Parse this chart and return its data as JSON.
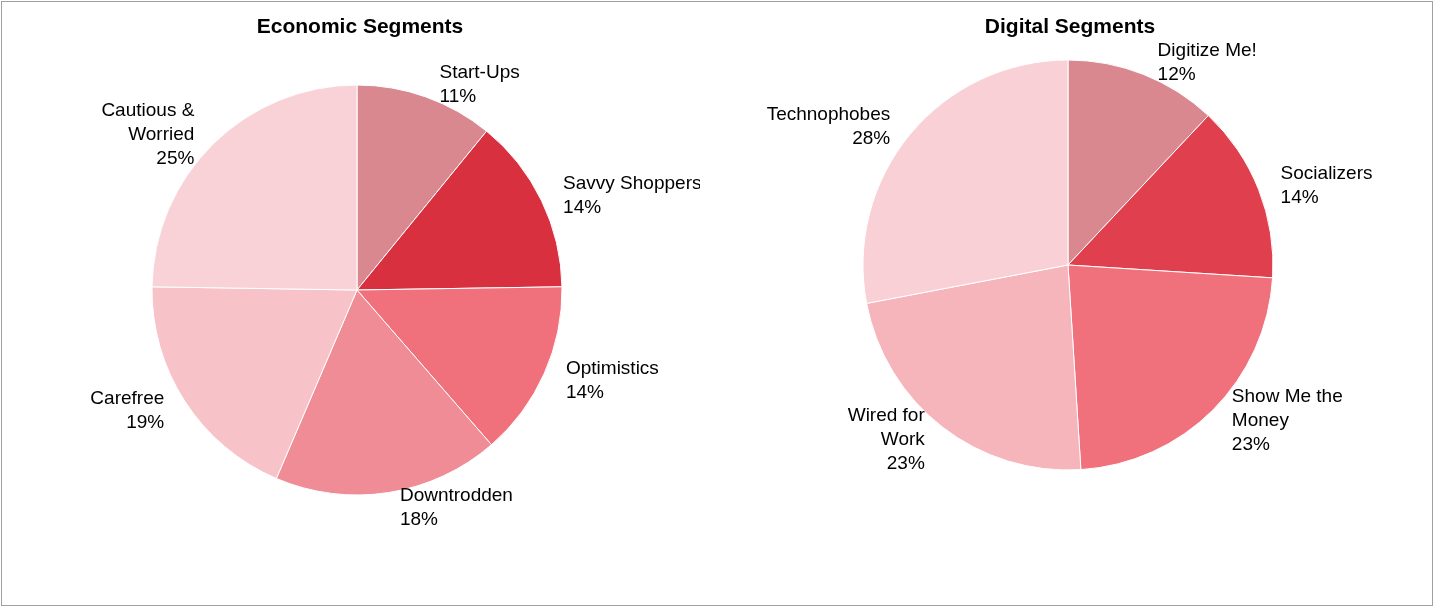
{
  "chart_data": [
    {
      "type": "pie",
      "title": "Economic Segments",
      "categories": [
        "Start-Ups",
        "Savvy Shoppers",
        "Optimistics",
        "Downtrodden",
        "Carefree",
        "Cautious &\nWorried"
      ],
      "values": [
        11,
        14,
        14,
        18,
        19,
        25
      ],
      "value_labels": [
        "11%",
        "14%",
        "14%",
        "18%",
        "19%",
        "25%"
      ],
      "colors": [
        "#d98890",
        "#d8303e",
        "#f0707c",
        "#ef8c96",
        "#f7c2c8",
        "#f8d2d6"
      ],
      "legend": false
    },
    {
      "type": "pie",
      "title": "Digital Segments",
      "categories": [
        "Digitize Me!",
        "Socializers",
        "Show Me the\nMoney",
        "Wired for\nWork",
        "Technophobes"
      ],
      "values": [
        12,
        14,
        23,
        23,
        28
      ],
      "value_labels": [
        "12%",
        "14%",
        "23%",
        "23%",
        "28%"
      ],
      "colors": [
        "#d98890",
        "#e0404e",
        "#f0707c",
        "#f6b4bb",
        "#f9d0d5"
      ],
      "legend": false
    }
  ]
}
